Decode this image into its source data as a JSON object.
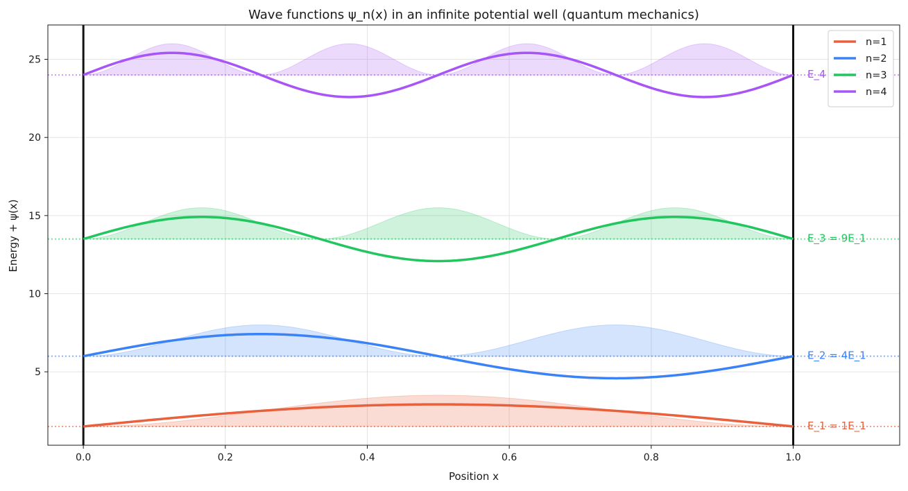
{
  "chart_data": {
    "type": "line",
    "title": "Wave functions ψ_n(x) in an infinite potential well (quantum mechanics)",
    "xlabel": "Position x",
    "ylabel": "Energy + ψ(x)",
    "xlim": [
      -0.05,
      1.15
    ],
    "ylim": [
      0.3,
      27.2
    ],
    "xticks": [
      0.0,
      0.2,
      0.4,
      0.6,
      0.8,
      1.0
    ],
    "xtick_labels": [
      "0.0",
      "0.2",
      "0.4",
      "0.6",
      "0.8",
      "1.0"
    ],
    "yticks": [
      5,
      10,
      15,
      20,
      25
    ],
    "ytick_labels": [
      "5",
      "10",
      "15",
      "20",
      "25"
    ],
    "grid": true,
    "legend_position": "top-right",
    "wall_positions": [
      0.0,
      1.0
    ],
    "series": [
      {
        "name": "n=1",
        "n": 1,
        "baseline": 1.5,
        "amplitude": 1.414,
        "color": "#e8603c",
        "energy_label": "E_1 = 1E_1"
      },
      {
        "name": "n=2",
        "n": 2,
        "baseline": 6.0,
        "amplitude": 1.414,
        "color": "#3b82f6",
        "energy_label": "E_2 = 4E_1"
      },
      {
        "name": "n=3",
        "n": 3,
        "baseline": 13.5,
        "amplitude": 1.414,
        "color": "#22c55e",
        "energy_label": "E_3 = 9E_1"
      },
      {
        "name": "n=4",
        "n": 4,
        "baseline": 24.0,
        "amplitude": 1.414,
        "color": "#a855f7",
        "energy_label": "E_4 = 16E_1"
      }
    ]
  }
}
